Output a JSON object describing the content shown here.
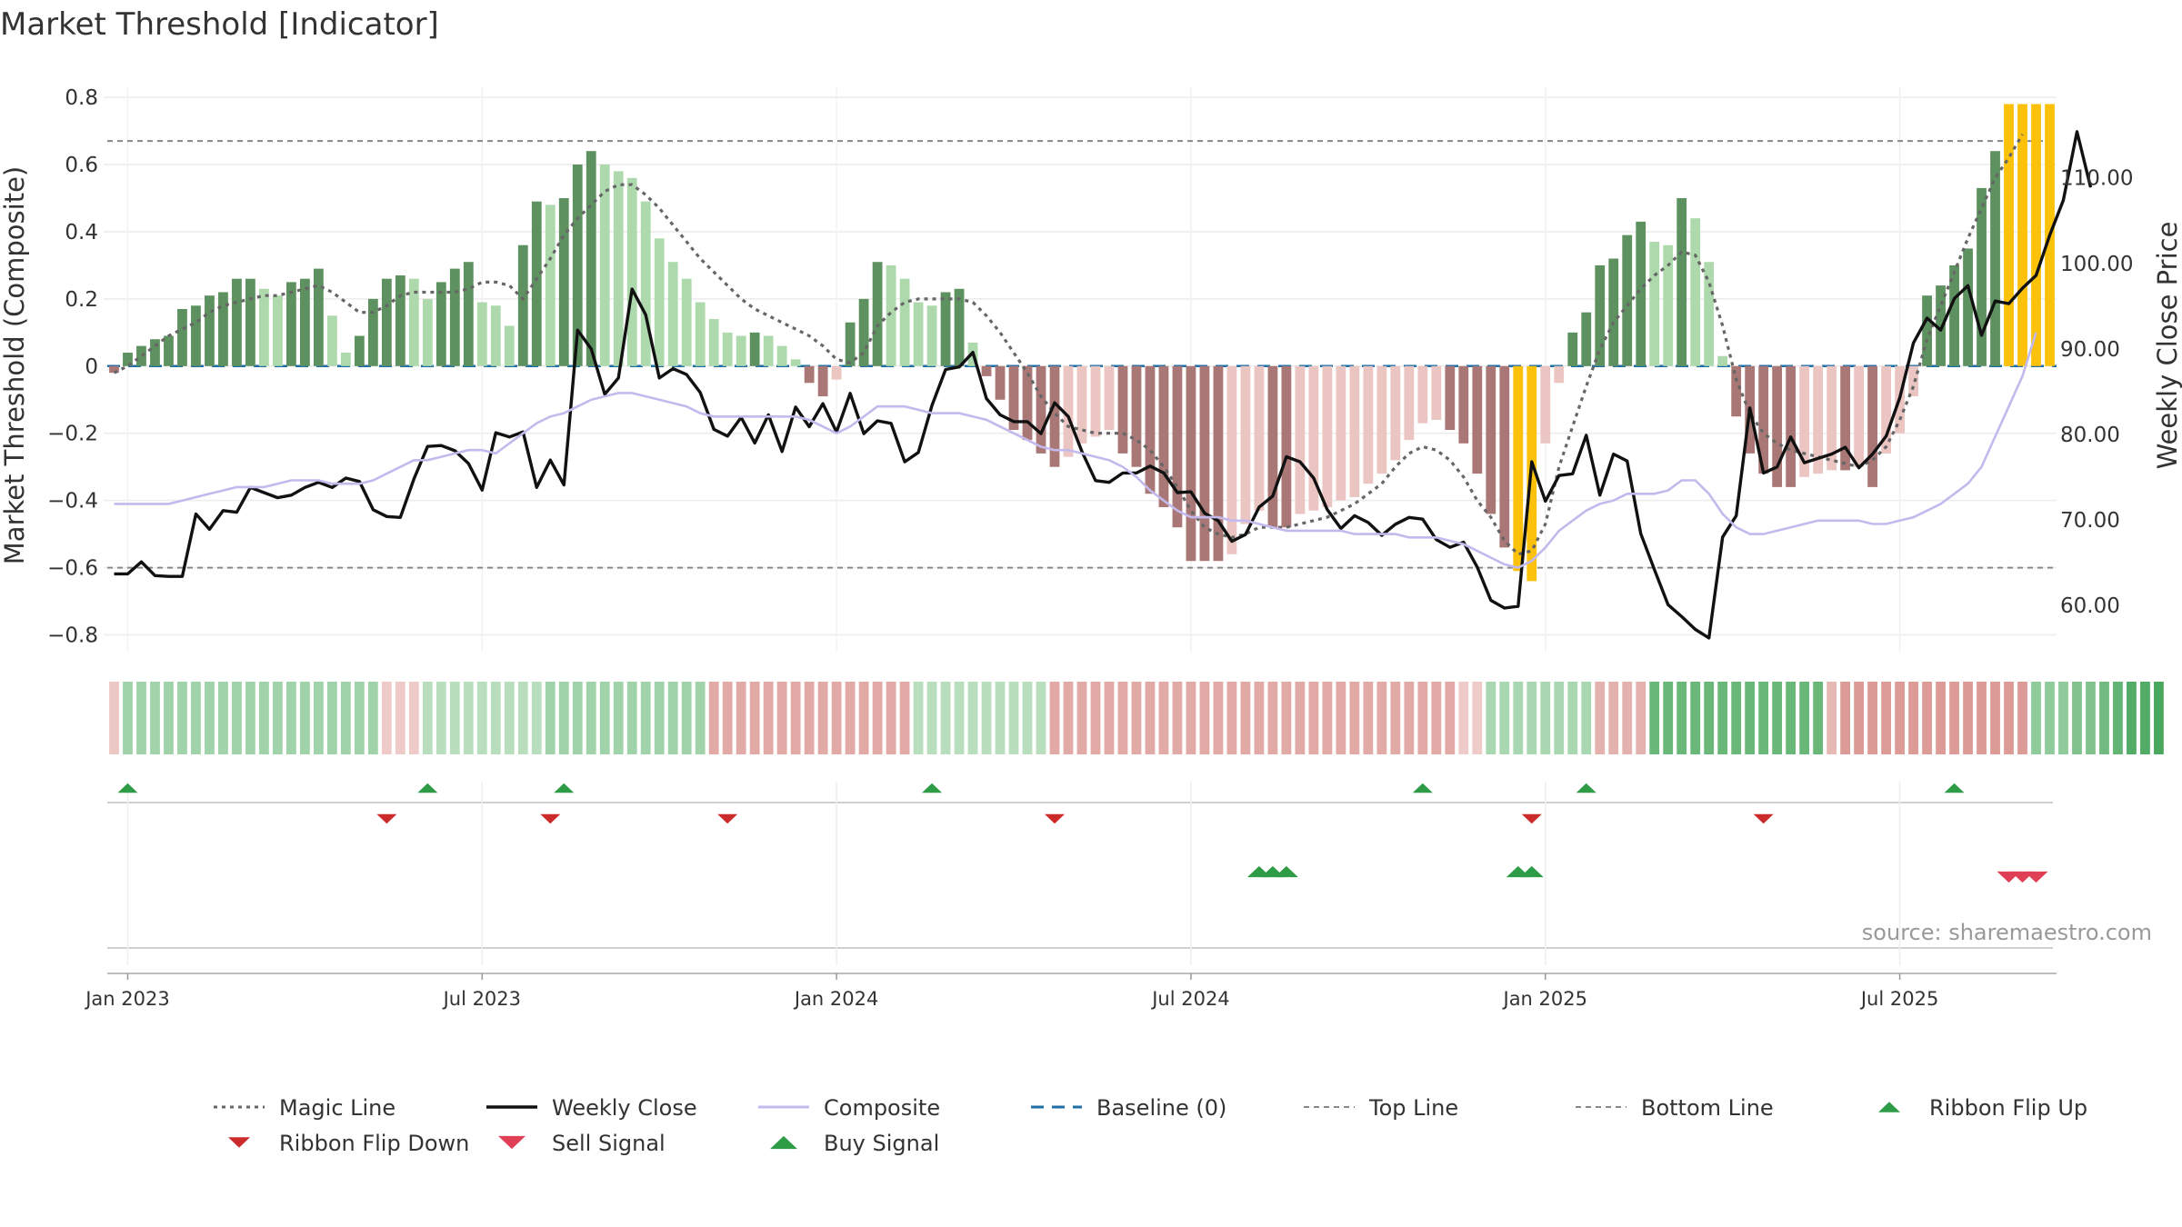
{
  "chart_data": {
    "type": "bar",
    "title": "Market Threshold [Indicator]",
    "ylabel_left": "Market Threshold (Composite)",
    "ylabel_right": "Weekly Close Price",
    "source": "source: sharemaestro.com",
    "y_left_ticks": [
      {
        "v": 0.8,
        "label": "0.8"
      },
      {
        "v": 0.6,
        "label": "0.6"
      },
      {
        "v": 0.4,
        "label": "0.4"
      },
      {
        "v": 0.2,
        "label": "0.2"
      },
      {
        "v": 0,
        "label": "0"
      },
      {
        "v": -0.2,
        "label": "−0.2"
      },
      {
        "v": -0.4,
        "label": "−0.4"
      },
      {
        "v": -0.6,
        "label": "−0.6"
      },
      {
        "v": -0.8,
        "label": "−0.8"
      }
    ],
    "y_right_ticks": [
      {
        "v": 110,
        "label": "110.00"
      },
      {
        "v": 100,
        "label": "100.00"
      },
      {
        "v": 90,
        "label": "90.00"
      },
      {
        "v": 80,
        "label": "80.00"
      },
      {
        "v": 70,
        "label": "70.00"
      },
      {
        "v": 60,
        "label": "60.00"
      }
    ],
    "ylim_left": [
      -0.85,
      0.83
    ],
    "ylim_right": [
      54.6,
      120.6
    ],
    "x_ticks": [
      {
        "week": 1,
        "label": "Jan 2023"
      },
      {
        "week": 27,
        "label": "Jul 2023"
      },
      {
        "week": 53,
        "label": "Jan 2024"
      },
      {
        "week": 79,
        "label": "Jul 2024"
      },
      {
        "week": 105,
        "label": "Jan 2025"
      },
      {
        "week": 131,
        "label": "Jul 2025"
      }
    ],
    "top_line": 0.67,
    "bottom_line": -0.6,
    "composite_bars": [
      -0.02,
      0.04,
      0.06,
      0.08,
      0.09,
      0.17,
      0.18,
      0.21,
      0.22,
      0.26,
      0.26,
      0.23,
      0.21,
      0.25,
      0.26,
      0.29,
      0.15,
      0.04,
      0.09,
      0.2,
      0.26,
      0.27,
      0.26,
      0.2,
      0.25,
      0.29,
      0.31,
      0.19,
      0.18,
      0.12,
      0.36,
      0.49,
      0.48,
      0.5,
      0.6,
      0.64,
      0.6,
      0.58,
      0.56,
      0.49,
      0.38,
      0.31,
      0.26,
      0.19,
      0.14,
      0.1,
      0.09,
      0.1,
      0.09,
      0.06,
      0.02,
      -0.05,
      -0.09,
      -0.04,
      0.13,
      0.2,
      0.31,
      0.3,
      0.26,
      0.19,
      0.18,
      0.22,
      0.23,
      0.07,
      -0.03,
      -0.1,
      -0.19,
      -0.22,
      -0.26,
      -0.3,
      -0.27,
      -0.23,
      -0.21,
      -0.19,
      -0.26,
      -0.3,
      -0.38,
      -0.42,
      -0.48,
      -0.58,
      -0.58,
      -0.58,
      -0.56,
      -0.47,
      -0.43,
      -0.48,
      -0.48,
      -0.44,
      -0.43,
      -0.42,
      -0.4,
      -0.39,
      -0.35,
      -0.32,
      -0.28,
      -0.22,
      -0.17,
      -0.16,
      -0.19,
      -0.23,
      -0.32,
      -0.44,
      -0.54,
      -0.61,
      -0.64,
      -0.23,
      -0.05,
      0.1,
      0.16,
      0.3,
      0.32,
      0.39,
      0.43,
      0.37,
      0.36,
      0.5,
      0.44,
      0.31,
      0.03,
      -0.15,
      -0.26,
      -0.32,
      -0.36,
      -0.36,
      -0.33,
      -0.32,
      -0.31,
      -0.31,
      -0.3,
      -0.36,
      -0.26,
      -0.2,
      -0.09,
      0.21,
      0.24,
      0.3,
      0.35,
      0.53,
      0.64,
      0.78,
      0.78,
      0.78,
      0.78
    ],
    "ribbon": [
      -0.1,
      0.35,
      0.35,
      0.35,
      0.35,
      0.35,
      0.35,
      0.35,
      0.35,
      0.35,
      0.35,
      0.35,
      0.35,
      0.35,
      0.35,
      0.35,
      0.35,
      0.35,
      0.35,
      0.35,
      -0.08,
      -0.08,
      -0.08,
      0.2,
      0.2,
      0.2,
      0.2,
      0.2,
      0.2,
      0.2,
      0.2,
      0.2,
      0.35,
      0.35,
      0.35,
      0.35,
      0.35,
      0.35,
      0.35,
      0.35,
      0.35,
      0.35,
      0.35,
      0.35,
      -0.3,
      -0.3,
      -0.3,
      -0.3,
      -0.3,
      -0.3,
      -0.3,
      -0.3,
      -0.3,
      -0.3,
      -0.3,
      -0.3,
      -0.3,
      -0.3,
      -0.3,
      0.2,
      0.2,
      0.2,
      0.2,
      0.2,
      0.2,
      0.2,
      0.2,
      0.2,
      0.2,
      -0.3,
      -0.3,
      -0.3,
      -0.3,
      -0.3,
      -0.3,
      -0.3,
      -0.3,
      -0.3,
      -0.3,
      -0.3,
      -0.3,
      -0.3,
      -0.3,
      -0.3,
      -0.3,
      -0.3,
      -0.3,
      -0.3,
      -0.3,
      -0.3,
      -0.3,
      -0.3,
      -0.3,
      -0.3,
      -0.3,
      -0.3,
      -0.3,
      -0.3,
      -0.3,
      -0.08,
      -0.08,
      0.3,
      0.3,
      0.3,
      0.3,
      0.3,
      0.3,
      0.3,
      0.3,
      -0.25,
      -0.25,
      -0.25,
      -0.25,
      0.7,
      0.7,
      0.7,
      0.7,
      0.7,
      0.7,
      0.7,
      0.7,
      0.7,
      0.7,
      0.7,
      0.7,
      0.7,
      -0.2,
      -0.4,
      -0.4,
      -0.4,
      -0.4,
      -0.4,
      -0.4,
      -0.4,
      -0.4,
      -0.4,
      -0.4,
      -0.4,
      -0.4,
      -0.4,
      -0.4,
      0.45,
      0.45,
      0.45,
      0.55,
      0.55,
      0.65,
      0.75,
      0.85,
      0.85,
      0.9
    ],
    "series": [
      {
        "name": "Magic Line",
        "values": [
          -0.02,
          0.0,
          0.03,
          0.06,
          0.09,
          0.11,
          0.13,
          0.16,
          0.18,
          0.19,
          0.2,
          0.21,
          0.21,
          0.22,
          0.23,
          0.24,
          0.22,
          0.19,
          0.16,
          0.16,
          0.18,
          0.21,
          0.22,
          0.22,
          0.22,
          0.22,
          0.23,
          0.25,
          0.25,
          0.24,
          0.2,
          0.26,
          0.32,
          0.39,
          0.44,
          0.48,
          0.52,
          0.54,
          0.54,
          0.51,
          0.47,
          0.42,
          0.37,
          0.32,
          0.28,
          0.24,
          0.2,
          0.17,
          0.15,
          0.13,
          0.11,
          0.09,
          0.06,
          0.02,
          0.01,
          0.04,
          0.12,
          0.16,
          0.19,
          0.2,
          0.2,
          0.2,
          0.2,
          0.19,
          0.15,
          0.1,
          0.04,
          -0.02,
          -0.09,
          -0.14,
          -0.18,
          -0.19,
          -0.2,
          -0.2,
          -0.2,
          -0.22,
          -0.25,
          -0.3,
          -0.36,
          -0.43,
          -0.48,
          -0.5,
          -0.51,
          -0.5,
          -0.48,
          -0.48,
          -0.48,
          -0.47,
          -0.46,
          -0.45,
          -0.43,
          -0.41,
          -0.38,
          -0.35,
          -0.3,
          -0.26,
          -0.24,
          -0.25,
          -0.28,
          -0.33,
          -0.4,
          -0.45,
          -0.52,
          -0.56,
          -0.55,
          -0.47,
          -0.3,
          -0.18,
          -0.06,
          0.05,
          0.13,
          0.18,
          0.23,
          0.27,
          0.3,
          0.34,
          0.33,
          0.25,
          0.12,
          -0.04,
          -0.14,
          -0.2,
          -0.23,
          -0.25,
          -0.26,
          -0.27,
          -0.28,
          -0.29,
          -0.3,
          -0.28,
          -0.24,
          -0.16,
          -0.06,
          0.08,
          0.18,
          0.28,
          0.38,
          0.47,
          0.56,
          0.62,
          0.69
        ]
      },
      {
        "name": "Weekly Close",
        "values": [
          63.7,
          63.7,
          65.1,
          63.5,
          63.4,
          63.4,
          70.7,
          68.9,
          71.1,
          70.9,
          73.8,
          73.2,
          72.6,
          72.9,
          73.8,
          74.4,
          73.8,
          74.9,
          74.5,
          71.2,
          70.4,
          70.3,
          74.8,
          78.6,
          78.7,
          78.1,
          76.6,
          73.5,
          80.2,
          79.7,
          80.3,
          73.8,
          77.0,
          74.1,
          92.2,
          90.0,
          84.7,
          86.6,
          97.0,
          94.0,
          86.6,
          87.7,
          87.0,
          84.9,
          80.6,
          79.8,
          82.0,
          79.0,
          82.3,
          78.0,
          83.2,
          80.9,
          83.6,
          80.3,
          84.8,
          80.1,
          81.6,
          81.3,
          76.8,
          77.9,
          83.4,
          87.6,
          87.9,
          89.6,
          84.2,
          82.3,
          81.5,
          81.5,
          80.1,
          83.7,
          82.1,
          78.0,
          74.6,
          74.4,
          75.5,
          75.5,
          76.3,
          75.5,
          73.2,
          73.3,
          70.8,
          69.9,
          67.5,
          68.3,
          71.5,
          72.8,
          77.4,
          76.8,
          74.9,
          71.2,
          69.0,
          70.5,
          69.7,
          68.2,
          69.5,
          70.3,
          70.1,
          67.7,
          66.8,
          67.4,
          64.5,
          60.6,
          59.7,
          59.9,
          76.8,
          72.2,
          75.2,
          75.4,
          79.9,
          72.9,
          77.7,
          76.9,
          68.4,
          64.2,
          60.1,
          58.7,
          57.2,
          56.2,
          68.0,
          70.5,
          83.1,
          75.5,
          76.2,
          79.7,
          76.7,
          77.2,
          77.7,
          78.5,
          76.1,
          77.7,
          79.8,
          84.3,
          90.7,
          93.6,
          92.2,
          95.9,
          97.4,
          91.6,
          95.6,
          95.3,
          97.1,
          98.6,
          103.3,
          107.4,
          115.4,
          108.9
        ],
        "color": "#111111"
      },
      {
        "name": "Composite",
        "values": [
          -0.41,
          -0.41,
          -0.41,
          -0.41,
          -0.41,
          -0.4,
          -0.39,
          -0.38,
          -0.37,
          -0.36,
          -0.36,
          -0.36,
          -0.35,
          -0.34,
          -0.34,
          -0.34,
          -0.35,
          -0.35,
          -0.35,
          -0.34,
          -0.32,
          -0.3,
          -0.28,
          -0.28,
          -0.27,
          -0.26,
          -0.25,
          -0.25,
          -0.26,
          -0.23,
          -0.2,
          -0.17,
          -0.15,
          -0.14,
          -0.12,
          -0.1,
          -0.09,
          -0.08,
          -0.08,
          -0.09,
          -0.1,
          -0.11,
          -0.12,
          -0.14,
          -0.15,
          -0.15,
          -0.15,
          -0.15,
          -0.15,
          -0.15,
          -0.15,
          -0.16,
          -0.18,
          -0.2,
          -0.18,
          -0.15,
          -0.12,
          -0.12,
          -0.12,
          -0.13,
          -0.14,
          -0.14,
          -0.14,
          -0.15,
          -0.16,
          -0.18,
          -0.2,
          -0.22,
          -0.24,
          -0.25,
          -0.25,
          -0.26,
          -0.27,
          -0.28,
          -0.3,
          -0.33,
          -0.37,
          -0.4,
          -0.43,
          -0.45,
          -0.45,
          -0.45,
          -0.46,
          -0.46,
          -0.47,
          -0.48,
          -0.49,
          -0.49,
          -0.49,
          -0.49,
          -0.49,
          -0.5,
          -0.5,
          -0.5,
          -0.5,
          -0.51,
          -0.51,
          -0.51,
          -0.52,
          -0.53,
          -0.55,
          -0.57,
          -0.59,
          -0.6,
          -0.58,
          -0.54,
          -0.49,
          -0.46,
          -0.43,
          -0.41,
          -0.4,
          -0.38,
          -0.38,
          -0.38,
          -0.37,
          -0.34,
          -0.34,
          -0.38,
          -0.44,
          -0.48,
          -0.5,
          -0.5,
          -0.49,
          -0.48,
          -0.47,
          -0.46,
          -0.46,
          -0.46,
          -0.46,
          -0.47,
          -0.47,
          -0.46,
          -0.45,
          -0.43,
          -0.41,
          -0.38,
          -0.35,
          -0.3,
          -0.21,
          -0.12,
          -0.03,
          0.1
        ],
        "color": "#c3b9ec"
      }
    ],
    "ribbon_flip_up": [
      1,
      23,
      33,
      60,
      96,
      108,
      135
    ],
    "ribbon_flip_down": [
      20,
      32,
      45,
      69,
      104,
      121
    ],
    "buy_signal": [
      84,
      85,
      86,
      103,
      104
    ],
    "sell_signal": [
      139,
      140,
      141
    ],
    "legend": [
      "Magic Line",
      "Weekly Close",
      "Composite",
      "Baseline (0)",
      "Top Line",
      "Bottom Line",
      "Ribbon Flip Up",
      "Ribbon Flip Down",
      "Sell Signal",
      "Buy Signal"
    ],
    "colors": {
      "bull_strong": "#5e9160",
      "bull_weak": "#aed9ad",
      "bear_strong": "#a97876",
      "bear_weak": "#ebc5c2",
      "extreme": "#fcc10b",
      "baseline": "#1f6fa6",
      "guide": "#888888",
      "flip_up": "#2e9c46",
      "flip_down": "#cc2b2b",
      "sell": "#e04055"
    }
  }
}
